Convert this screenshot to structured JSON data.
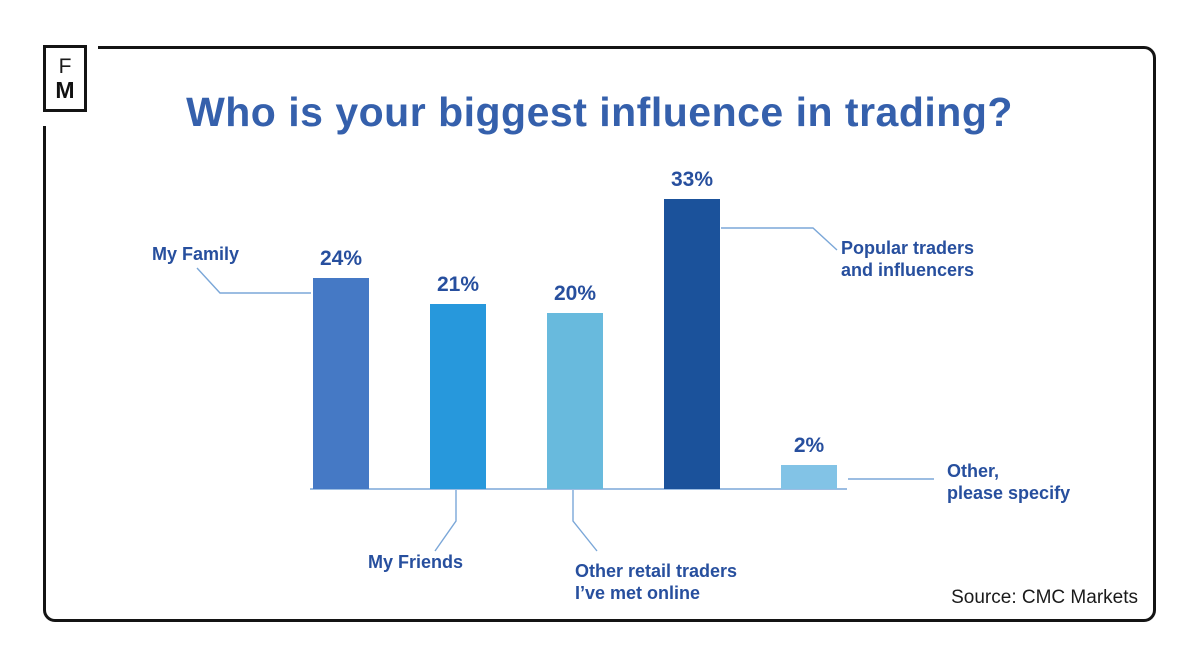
{
  "logo": {
    "letter_top": "F",
    "letter_bottom": "M"
  },
  "title": "Who is your biggest influence in trading?",
  "source": "Source: CMC Markets",
  "colors": {
    "title_text": "#3560ac",
    "label_text": "#274f9e",
    "connector_line": "#7ba7d8",
    "frame_border": "#141414",
    "background": "#ffffff"
  },
  "chart_data": {
    "type": "bar",
    "title": "Who is your biggest influence in trading?",
    "categories": [
      "My Family",
      "My Friends",
      "Other retail traders I’ve met online",
      "Popular traders and influencers",
      "Other, please specify"
    ],
    "values": [
      24,
      21,
      20,
      33,
      2
    ],
    "value_labels": [
      "24%",
      "21%",
      "20%",
      "33%",
      "2%"
    ],
    "unit": "percent",
    "ylim": [
      0,
      35
    ],
    "grid": false,
    "legend": false,
    "bar_colors": [
      "#4579c5",
      "#2798dc",
      "#68badd",
      "#1b529b",
      "#82c3e6"
    ],
    "source": "Source: CMC Markets"
  },
  "callouts": {
    "family_1": "My Family",
    "friends_1": "My Friends",
    "retail_1": "Other retail traders",
    "retail_2": "I’ve met online",
    "popular_1": "Popular traders",
    "popular_2": "and influencers",
    "other_1": "Other,",
    "other_2": "please specify"
  }
}
